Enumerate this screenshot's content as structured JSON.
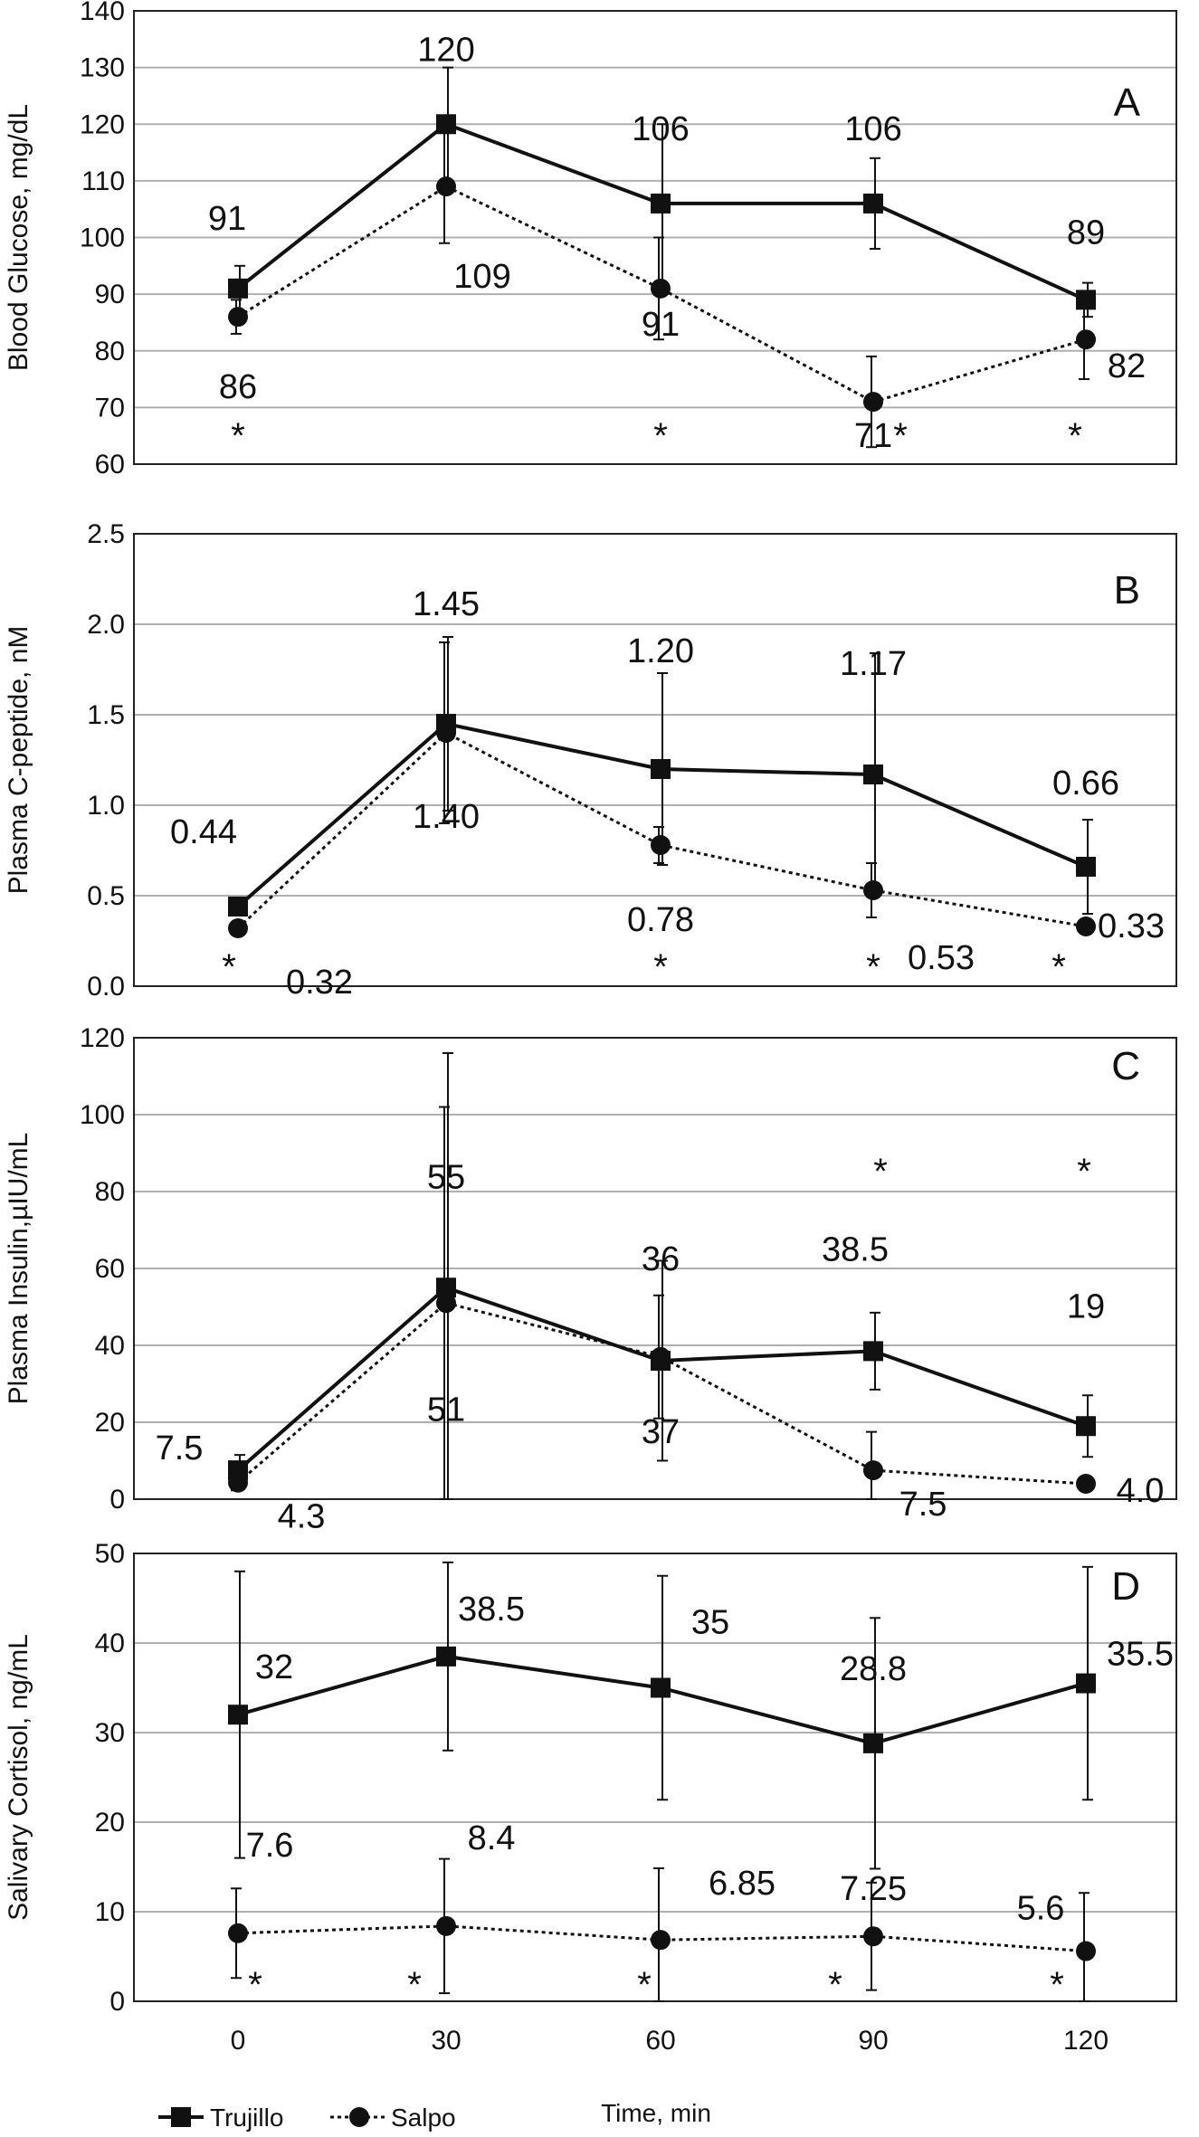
{
  "chart_data": [
    {
      "type": "line",
      "panel": "A",
      "ylabel": "Blood Glucose, mg/dL",
      "ylim": [
        60,
        140
      ],
      "yticks": [
        "60",
        "70",
        "80",
        "90",
        "100",
        "110",
        "120",
        "130",
        "140"
      ],
      "x": [
        0,
        30,
        60,
        90,
        120
      ],
      "series": [
        {
          "name": "Trujillo",
          "values": [
            91,
            120,
            106,
            106,
            89
          ],
          "err": [
            4,
            10,
            14,
            8,
            3
          ]
        },
        {
          "name": "Salpo",
          "values": [
            86,
            109,
            91,
            71,
            82
          ],
          "err": [
            3,
            10,
            9,
            8,
            7
          ]
        }
      ],
      "labels_trujillo": [
        "91",
        "120",
        "106",
        "106",
        "89"
      ],
      "labels_salpo": [
        "86",
        "109",
        "91",
        "71",
        "82"
      ],
      "stars": [
        "*",
        "*",
        "*",
        "*"
      ]
    },
    {
      "type": "line",
      "panel": "B",
      "ylabel": "Plasma C-peptide, nM",
      "ylim": [
        0,
        2.5
      ],
      "yticks": [
        "0.0",
        "0.5",
        "1.0",
        "1.5",
        "2.0",
        "2.5"
      ],
      "x": [
        0,
        30,
        60,
        90,
        120
      ],
      "series": [
        {
          "name": "Trujillo",
          "values": [
            0.44,
            1.45,
            1.2,
            1.17,
            0.66
          ],
          "err": [
            0.03,
            0.48,
            0.53,
            0.67,
            0.26
          ]
        },
        {
          "name": "Salpo",
          "values": [
            0.32,
            1.4,
            0.78,
            0.53,
            0.33
          ],
          "err": [
            0.03,
            0.5,
            0.1,
            0.15,
            0.03
          ]
        }
      ],
      "labels_trujillo": [
        "0.44",
        "1.45",
        "1.20",
        "1.17",
        "0.66"
      ],
      "labels_salpo": [
        "0.32",
        "1.40",
        "0.78",
        "0.53",
        "0.33"
      ],
      "stars": [
        "*",
        "*",
        "*",
        "*"
      ]
    },
    {
      "type": "line",
      "panel": "C",
      "ylabel": "Plasma Insulin,µIU/mL",
      "ylim": [
        0,
        120
      ],
      "yticks": [
        "0",
        "20",
        "40",
        "60",
        "80",
        "100",
        "120"
      ],
      "x": [
        0,
        30,
        60,
        90,
        120
      ],
      "series": [
        {
          "name": "Trujillo",
          "values": [
            7.5,
            55,
            36,
            38.5,
            19
          ],
          "err": [
            4,
            61,
            26,
            10,
            8
          ]
        },
        {
          "name": "Salpo",
          "values": [
            4.3,
            51,
            37,
            7.5,
            4.0
          ],
          "err": [
            2,
            51,
            16,
            10,
            1
          ]
        }
      ],
      "labels_trujillo": [
        "7.5",
        "55",
        "36",
        "38.5",
        "19"
      ],
      "labels_salpo": [
        "4.3",
        "51",
        "37",
        "7.5",
        "4.0"
      ],
      "stars": [
        "*",
        "*"
      ]
    },
    {
      "type": "line",
      "panel": "D",
      "ylabel": "Salivary Cortisol, ng/mL",
      "ylim": [
        0,
        50
      ],
      "yticks": [
        "0",
        "10",
        "20",
        "30",
        "40",
        "50"
      ],
      "x": [
        0,
        30,
        60,
        90,
        120
      ],
      "xticks": [
        "0",
        "30",
        "60",
        "90",
        "120"
      ],
      "xlabel": "Time, min",
      "series": [
        {
          "name": "Trujillo",
          "values": [
            32,
            38.5,
            35,
            28.8,
            35.5
          ],
          "err": [
            16,
            10.5,
            12.5,
            14,
            13
          ]
        },
        {
          "name": "Salpo",
          "values": [
            7.6,
            8.4,
            6.85,
            7.25,
            5.6
          ],
          "err": [
            5,
            7.5,
            8,
            6,
            6.5
          ]
        }
      ],
      "labels_trujillo": [
        "32",
        "38.5",
        "35",
        "28.8",
        "35.5"
      ],
      "labels_salpo": [
        "7.6",
        "8.4",
        "6.85",
        "7.25",
        "5.6"
      ],
      "stars": [
        "*",
        "*",
        "*",
        "*",
        "*"
      ]
    }
  ],
  "legend": {
    "trujillo": "Trujillo",
    "salpo": "Salpo"
  },
  "colors": {
    "line": "#111111",
    "grid": "#b0b0b0",
    "frame": "#222222"
  }
}
